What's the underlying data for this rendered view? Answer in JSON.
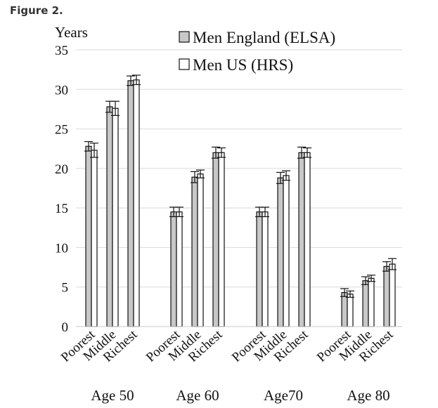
{
  "figure_label": "Figure 2.",
  "chart_data": {
    "type": "bar",
    "ylabel": "Years",
    "ylim": [
      0,
      35
    ],
    "yticks": [
      0,
      5,
      10,
      15,
      20,
      25,
      30,
      35
    ],
    "grid": true,
    "legend_position": "top-right",
    "groups": [
      {
        "label": "Age 50",
        "categories": [
          "Poorest",
          "Middle",
          "Richest"
        ]
      },
      {
        "label": "Age 60",
        "categories": [
          "Poorest",
          "Middle",
          "Richest"
        ]
      },
      {
        "label": "Age70",
        "categories": [
          "Poorest",
          "Middle",
          "Richest"
        ]
      },
      {
        "label": "Age 80",
        "categories": [
          "Poorest",
          "Middle",
          "Richest"
        ]
      }
    ],
    "series": [
      {
        "name": "Men England (ELSA)",
        "color": "#c8c8c8",
        "values": [
          22.8,
          27.8,
          31.1,
          14.5,
          18.9,
          22.0,
          14.5,
          18.8,
          22.0,
          4.3,
          5.8,
          7.6
        ],
        "error": [
          0.6,
          0.7,
          0.6,
          0.6,
          0.7,
          0.7,
          0.6,
          0.7,
          0.7,
          0.5,
          0.5,
          0.6
        ]
      },
      {
        "name": "Men US (HRS)",
        "color": "#ffffff",
        "values": [
          22.3,
          27.6,
          31.2,
          14.5,
          19.3,
          22.0,
          14.5,
          19.1,
          22.0,
          4.1,
          6.1,
          7.9
        ],
        "error": [
          0.9,
          0.9,
          0.6,
          0.6,
          0.5,
          0.6,
          0.6,
          0.6,
          0.6,
          0.4,
          0.4,
          0.7
        ]
      }
    ]
  }
}
